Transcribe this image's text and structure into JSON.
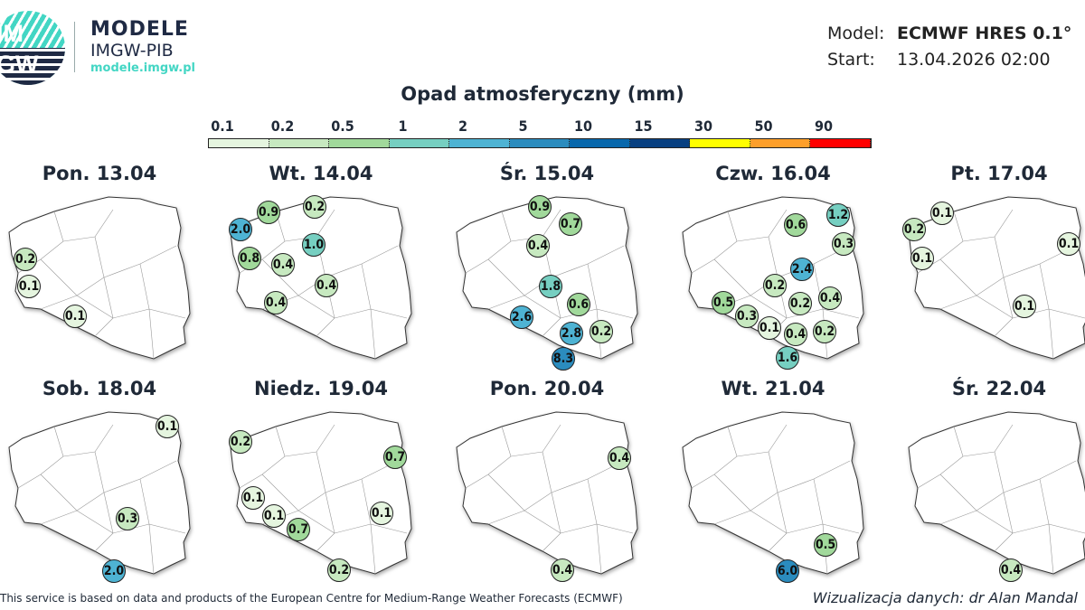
{
  "header": {
    "logo_text": "IMGW",
    "brand": "MODELE",
    "org": "IMGW-PIB",
    "url": "modele.imgw.pl",
    "model_label": "Model:",
    "model_value": "ECMWF HRES 0.1°",
    "start_label": "Start:",
    "start_value": "13.04.2026 02:00"
  },
  "legend": {
    "title": "Opad atmosferyczny (mm)",
    "ticks": [
      "0.1",
      "0.2",
      "0.5",
      "1",
      "2",
      "5",
      "10",
      "15",
      "30",
      "50",
      "90"
    ],
    "colors": [
      "#e5f5df",
      "#c7e9c0",
      "#a1d99b",
      "#76cfc1",
      "#4eb3d3",
      "#2b8cbe",
      "#0868ac",
      "#084081",
      "#ffff00",
      "#fd9f2a",
      "#ff0000"
    ]
  },
  "days": [
    {
      "label": "Pon. 13.04",
      "values": [
        "0.2",
        "0.1",
        "0.1"
      ]
    },
    {
      "label": "Wt. 14.04",
      "values": [
        "2.0",
        "0.9",
        "0.2",
        "1.0",
        "0.8",
        "0.4",
        "0.4",
        "0.4"
      ]
    },
    {
      "label": "Śr. 15.04",
      "values": [
        "0.9",
        "0.7",
        "0.4",
        "1.8",
        "0.6",
        "2.6",
        "2.8",
        "0.2",
        "8.3"
      ]
    },
    {
      "label": "Czw. 16.04",
      "values": [
        "0.6",
        "1.2",
        "0.3",
        "2.4",
        "0.2",
        "0.5",
        "0.2",
        "0.4",
        "0.3",
        "0.1",
        "0.4",
        "0.2",
        "1.6"
      ]
    },
    {
      "label": "Pt. 17.04",
      "values": [
        "0.1",
        "0.2",
        "0.1",
        "0.1",
        "0.1"
      ]
    },
    {
      "label": "Sob. 18.04",
      "values": [
        "0.1",
        "0.3",
        "2.0"
      ]
    },
    {
      "label": "Niedz. 19.04",
      "values": [
        "0.2",
        "0.7",
        "0.1",
        "0.1",
        "0.7",
        "0.1",
        "0.2"
      ]
    },
    {
      "label": "Pon. 20.04",
      "values": [
        "0.4",
        "0.4"
      ]
    },
    {
      "label": "Wt. 21.04",
      "values": [
        "0.5",
        "6.0"
      ]
    },
    {
      "label": "Śr. 22.04",
      "values": [
        "0.4"
      ]
    }
  ],
  "footer": {
    "source": "This service is based on data and products of the European Centre for Medium-Range Weather Forecasts (ECMWF)",
    "credit": "Wizualizacja danych: dr Alan Mandal"
  }
}
